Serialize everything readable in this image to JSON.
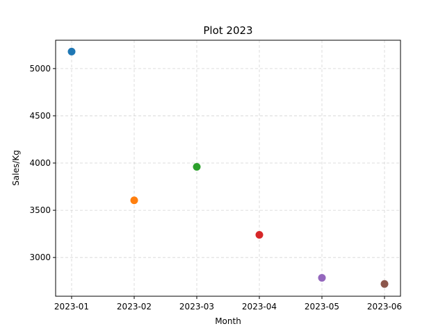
{
  "chart_data": {
    "type": "scatter",
    "title": "Plot 2023",
    "xlabel": "Month",
    "ylabel": "Sales/Kg",
    "x": [
      "2023-01",
      "2023-02",
      "2023-03",
      "2023-04",
      "2023-05",
      "2023-06"
    ],
    "series": [
      {
        "x": "2023-01",
        "y": 5180,
        "color": "#1f77b4"
      },
      {
        "x": "2023-02",
        "y": 3605,
        "color": "#ff7f0e"
      },
      {
        "x": "2023-03",
        "y": 3960,
        "color": "#2ca02c"
      },
      {
        "x": "2023-04",
        "y": 3240,
        "color": "#d62728"
      },
      {
        "x": "2023-05",
        "y": 2785,
        "color": "#9467bd"
      },
      {
        "x": "2023-06",
        "y": 2720,
        "color": "#8c564b"
      }
    ],
    "yticks": [
      3000,
      3500,
      4000,
      4500,
      5000
    ],
    "ylim": [
      2590,
      5300
    ],
    "grid": true
  }
}
